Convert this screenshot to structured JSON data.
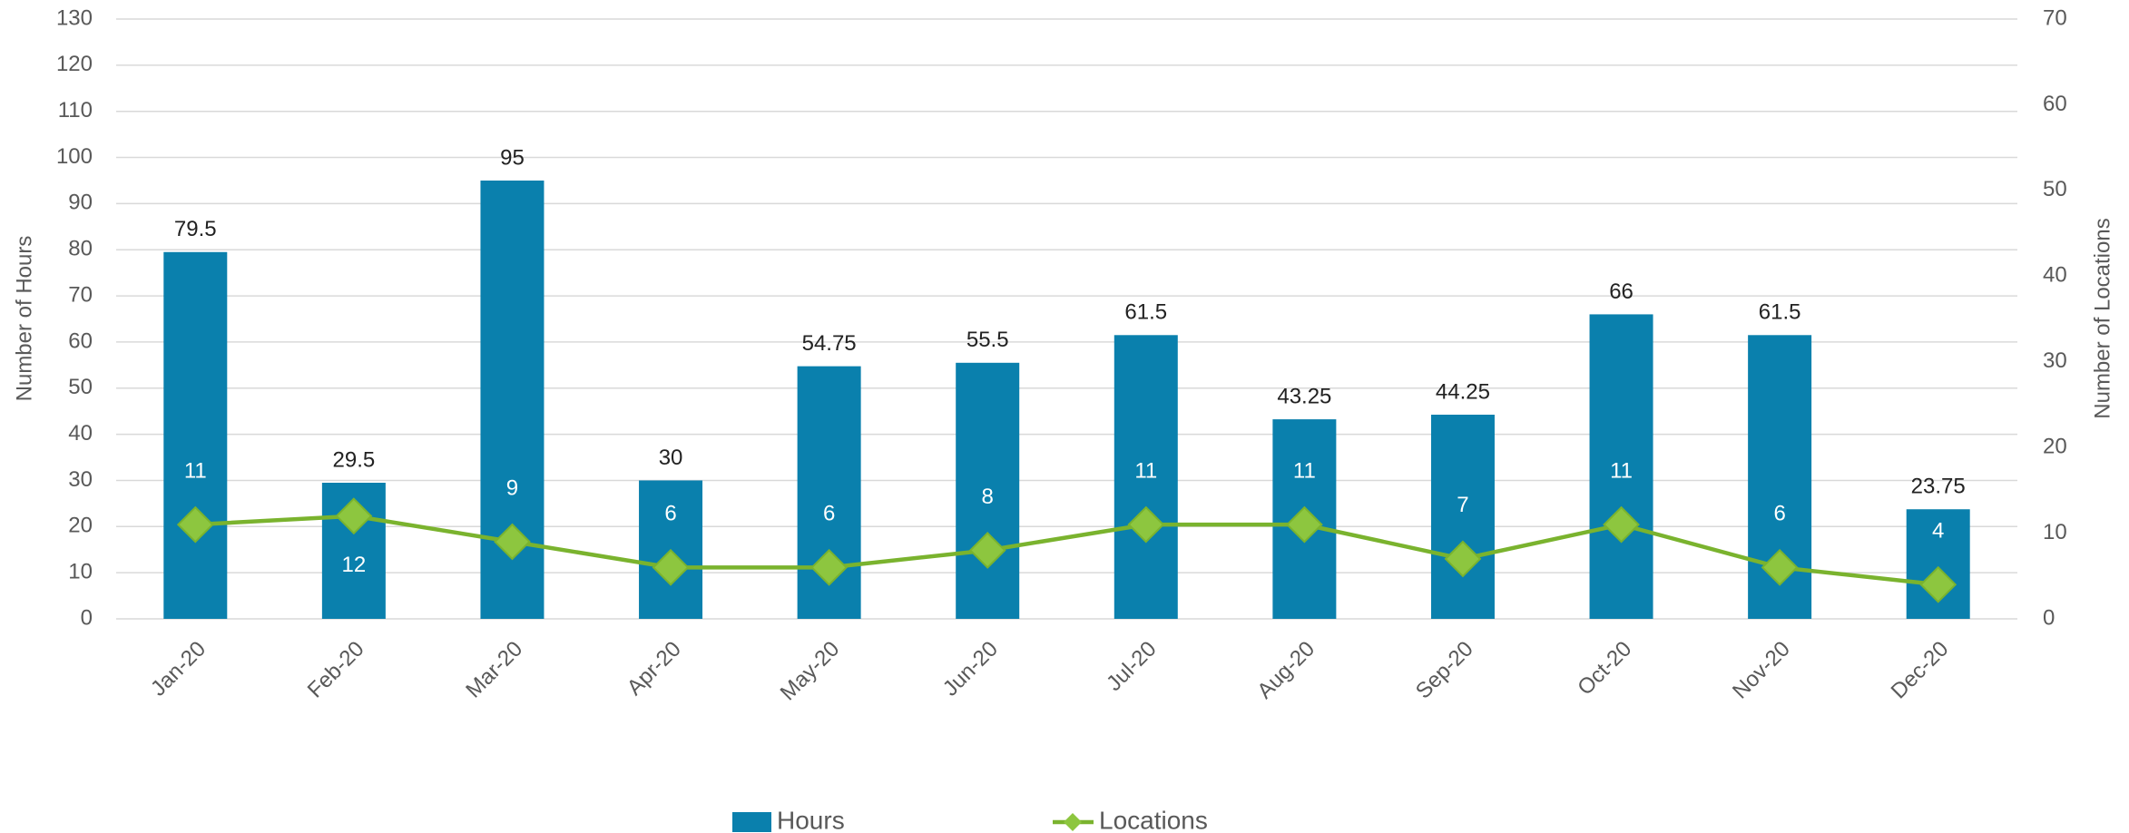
{
  "chart_data": {
    "type": "bar_line",
    "categories": [
      "Jan-20",
      "Feb-20",
      "Mar-20",
      "Apr-20",
      "May-20",
      "Jun-20",
      "Jul-20",
      "Aug-20",
      "Sep-20",
      "Oct-20",
      "Nov-20",
      "Dec-20"
    ],
    "series": [
      {
        "name": "Hours",
        "color": "#0a80ad",
        "type": "bar",
        "values": [
          79.5,
          29.5,
          95,
          30,
          54.75,
          55.5,
          61.5,
          43.25,
          44.25,
          66,
          61.5,
          23.75
        ]
      },
      {
        "name": "Locations",
        "color": "#7ab32e",
        "type": "line",
        "axis": "y2",
        "values": [
          11,
          12,
          9,
          6,
          6,
          8,
          11,
          11,
          7,
          11,
          6,
          4
        ]
      }
    ],
    "ylabel": "Number of Hours",
    "y2label": "Number of Locations",
    "ylim": [
      0,
      130
    ],
    "yticks": [
      0,
      10,
      20,
      30,
      40,
      50,
      60,
      70,
      80,
      90,
      100,
      110,
      120,
      130
    ],
    "y2lim": [
      0,
      70
    ],
    "y2ticks": [
      0,
      10,
      20,
      30,
      40,
      50,
      60,
      70
    ],
    "grid": true,
    "legend": "bottom"
  }
}
